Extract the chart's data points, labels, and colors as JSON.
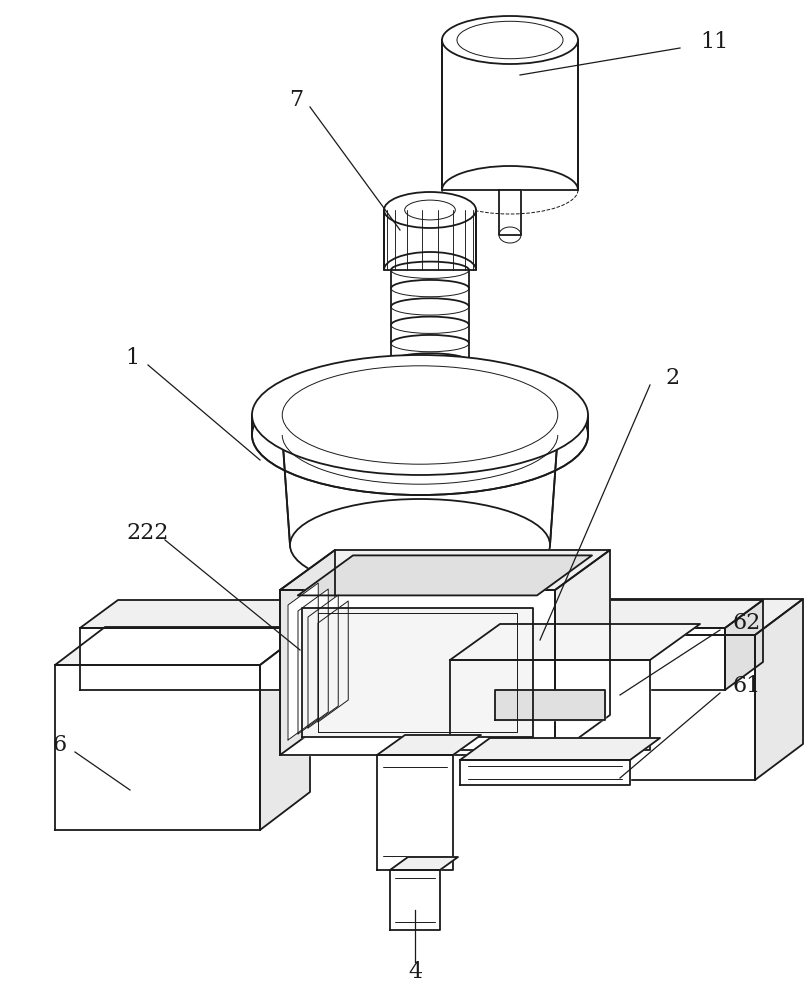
{
  "bg_color": "#ffffff",
  "line_color": "#1a1a1a",
  "lw": 1.3,
  "tlw": 0.7,
  "figsize": [
    8.06,
    10.0
  ],
  "dpi": 100,
  "label_fs": 16,
  "ann_lw": 0.9
}
